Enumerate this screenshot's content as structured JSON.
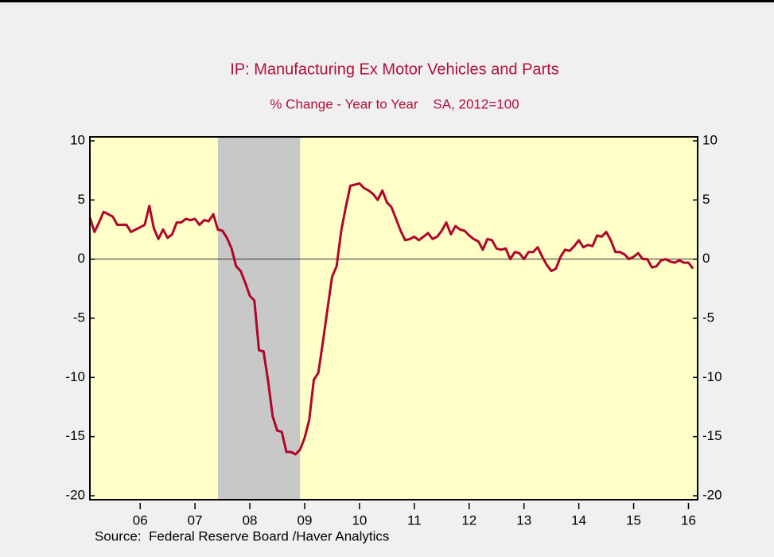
{
  "chart_data": {
    "type": "line",
    "title": "IP: Manufacturing Ex Motor Vehicles and Parts",
    "subtitle": "% Change - Year to Year    SA, 2012=100",
    "source": "Source:  Federal Reserve Board /Haver Analytics",
    "x": [
      2005.583,
      2005.667,
      2005.75,
      2005.833,
      2005.917,
      2006.0,
      2006.083,
      2006.167,
      2006.25,
      2006.333,
      2006.417,
      2006.5,
      2006.583,
      2006.667,
      2006.75,
      2006.833,
      2006.917,
      2007.0,
      2007.083,
      2007.167,
      2007.25,
      2007.333,
      2007.417,
      2007.5,
      2007.583,
      2007.667,
      2007.75,
      2007.833,
      2007.917,
      2008.0,
      2008.083,
      2008.167,
      2008.25,
      2008.333,
      2008.417,
      2008.5,
      2008.583,
      2008.667,
      2008.75,
      2008.833,
      2008.917,
      2009.0,
      2009.083,
      2009.167,
      2009.25,
      2009.333,
      2009.417,
      2009.5,
      2009.583,
      2009.667,
      2009.75,
      2009.833,
      2009.917,
      2010.0,
      2010.083,
      2010.167,
      2010.25,
      2010.333,
      2010.417,
      2010.5,
      2010.583,
      2010.667,
      2010.75,
      2010.833,
      2010.917,
      2011.0,
      2011.083,
      2011.167,
      2011.25,
      2011.333,
      2011.417,
      2011.5,
      2011.583,
      2011.667,
      2011.75,
      2011.833,
      2011.917,
      2012.0,
      2012.083,
      2012.167,
      2012.25,
      2012.333,
      2012.417,
      2012.5,
      2012.583,
      2012.667,
      2012.75,
      2012.833,
      2012.917,
      2013.0,
      2013.083,
      2013.167,
      2013.25,
      2013.333,
      2013.417,
      2013.5,
      2013.583,
      2013.667,
      2013.75,
      2013.833,
      2013.917,
      2014.0,
      2014.083,
      2014.167,
      2014.25,
      2014.333,
      2014.417,
      2014.5,
      2014.583,
      2014.667,
      2014.75,
      2014.833,
      2014.917,
      2015.0,
      2015.083,
      2015.167,
      2015.25,
      2015.333,
      2015.417,
      2015.5,
      2015.583,
      2015.667,
      2015.75,
      2015.833,
      2015.917,
      2016.0,
      2016.083,
      2016.167,
      2016.25,
      2016.333,
      2016.417,
      2016.5,
      2016.583
    ],
    "series": [
      {
        "color": "#b0052a",
        "values": [
          3.5,
          2.3,
          3.1,
          4.0,
          3.8,
          3.6,
          2.9,
          2.9,
          2.9,
          2.3,
          2.5,
          2.7,
          2.9,
          4.5,
          2.6,
          1.7,
          2.5,
          1.8,
          2.1,
          3.1,
          3.1,
          3.4,
          3.3,
          3.4,
          2.9,
          3.3,
          3.2,
          3.8,
          2.5,
          2.4,
          1.8,
          0.9,
          -0.6,
          -1.0,
          -2.0,
          -3.1,
          -3.5,
          -7.7,
          -7.8,
          -10.3,
          -13.3,
          -14.5,
          -14.6,
          -16.3,
          -16.3,
          -16.5,
          -16.1,
          -15.1,
          -13.6,
          -10.2,
          -9.6,
          -7.0,
          -4.2,
          -1.5,
          -0.6,
          2.4,
          4.4,
          6.2,
          6.3,
          6.4,
          6.0,
          5.8,
          5.5,
          5.0,
          5.8,
          4.8,
          4.4,
          3.4,
          2.4,
          1.6,
          1.7,
          1.9,
          1.6,
          1.9,
          2.2,
          1.7,
          1.9,
          2.4,
          3.1,
          2.1,
          2.8,
          2.5,
          2.4,
          2.0,
          1.7,
          1.5,
          0.8,
          1.7,
          1.6,
          0.9,
          0.8,
          0.9,
          0.0,
          0.6,
          0.5,
          0.0,
          0.6,
          0.6,
          1.0,
          0.2,
          -0.5,
          -1.0,
          -0.8,
          0.2,
          0.8,
          0.7,
          1.1,
          1.6,
          1.0,
          1.2,
          1.1,
          2.0,
          1.9,
          2.3,
          1.6,
          0.6,
          0.6,
          0.4,
          0.0,
          0.2,
          0.5,
          0.0,
          0.0,
          -0.7,
          -0.6,
          -0.1,
          0.0,
          -0.2,
          -0.3,
          -0.1,
          -0.3,
          -0.3,
          -0.8
        ]
      }
    ],
    "recession": [
      2007.917,
      2009.417
    ],
    "recession_color": "#c8c8c8",
    "plot_color": "#ffffc8",
    "hline": 0,
    "xlim": [
      2005.583,
      2016.667
    ],
    "xticks": [
      {
        "value": 2006.5,
        "label": "06"
      },
      {
        "value": 2007.5,
        "label": "07"
      },
      {
        "value": 2008.5,
        "label": "08"
      },
      {
        "value": 2009.5,
        "label": "09"
      },
      {
        "value": 2010.5,
        "label": "10"
      },
      {
        "value": 2011.5,
        "label": "11"
      },
      {
        "value": 2012.5,
        "label": "12"
      },
      {
        "value": 2013.5,
        "label": "13"
      },
      {
        "value": 2014.5,
        "label": "14"
      },
      {
        "value": 2015.5,
        "label": "15"
      },
      {
        "value": 2016.5,
        "label": "16"
      }
    ],
    "ylim": [
      -20,
      10
    ],
    "yticks": [
      10,
      5,
      0,
      -5,
      -10,
      -15,
      -20
    ],
    "y2lim": [
      -20,
      10
    ],
    "y2ticks": [
      10,
      5,
      0,
      -5,
      -10,
      -15,
      -20
    ]
  }
}
